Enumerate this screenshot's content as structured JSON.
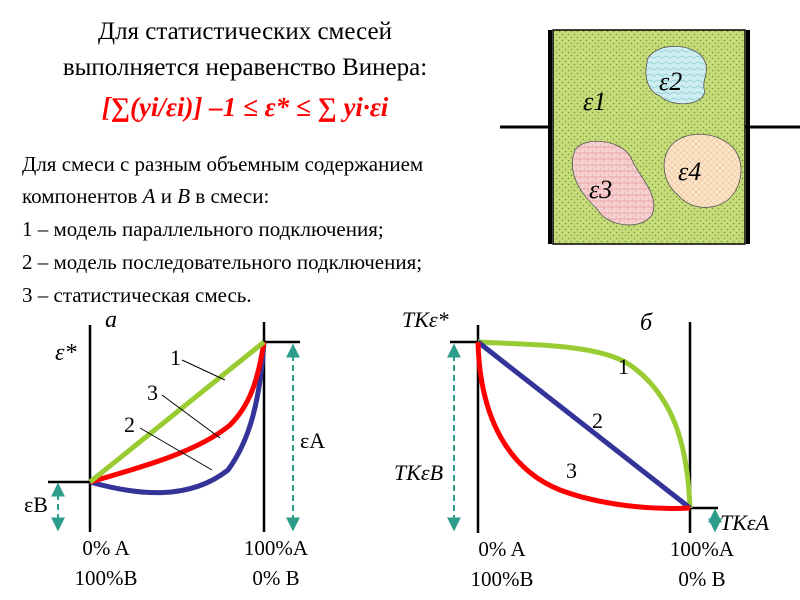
{
  "header": {
    "line1": "Для статистических смесей",
    "line2": "выполняется неравенство Винера:",
    "formula": "[∑(yi/εi)] –1 ≤ ε* ≤ ∑ yi∙εi"
  },
  "description": {
    "line1": "Для смеси с разным объемным содержанием",
    "line2_pre": "компонентов ",
    "comp_a": "A",
    "line2_mid": " и ",
    "comp_b": "B",
    "line2_post": " в смеси:",
    "item1": "1 – модель параллельного подключения;",
    "item2": "2 – модель последовательного подключения;",
    "item3": "3 – статистическая смесь."
  },
  "mixture": {
    "labels": [
      "ε1",
      "ε2",
      "ε3",
      "ε4"
    ],
    "colors": {
      "matrix": "#c6dc7a",
      "e2": "#cfeef2",
      "e3": "#f6d0d0",
      "e4": "#fbe3c8"
    }
  },
  "chart_a": {
    "panel_label": "а",
    "y_label": "ε*",
    "left_value": "εB",
    "right_value": "εA",
    "x_left": [
      "0% A",
      "100%B"
    ],
    "x_right": [
      "100%A",
      "0% B"
    ],
    "curve_labels": [
      "1",
      "3",
      "2"
    ]
  },
  "chart_b": {
    "panel_label": "б",
    "y_label": "TKε*",
    "left_value": "TKεB",
    "right_value": "TKεA",
    "x_left": [
      "0% A",
      "100%B"
    ],
    "x_right": [
      "100%A",
      "0% B"
    ],
    "curve_labels": [
      "1",
      "2",
      "3"
    ]
  },
  "colors": {
    "curve1": "#99cc33",
    "curve2": "#333399",
    "curve3": "#ff0000",
    "arrow": "#2e9c8a"
  }
}
